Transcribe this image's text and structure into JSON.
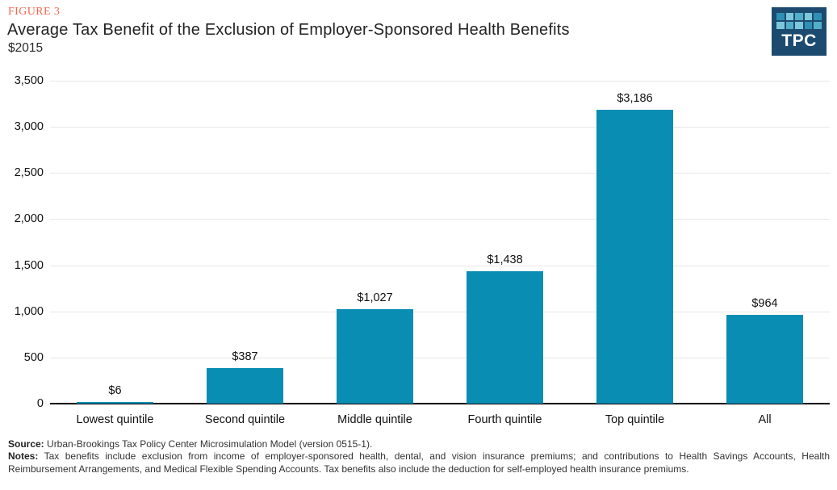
{
  "header": {
    "figure_label": "FIGURE 3",
    "title": "Average Tax Benefit of the Exclusion of Employer-Sponsored Health Benefits",
    "subtitle": "$2015"
  },
  "logo": {
    "text": "TPC",
    "background_color": "#1D4A6F",
    "square_colors": [
      "#2F8FB5",
      "#7CC7DB",
      "#52AFC9",
      "#7CC7DB",
      "#2F8FB5",
      "#7CC7DB",
      "#52AFC9",
      "#7CC7DB",
      "#2F8FB5",
      "#52AFC9"
    ]
  },
  "chart_data": {
    "type": "bar",
    "title": "Average Tax Benefit of the Exclusion of Employer-Sponsored Health Benefits",
    "subtitle": "$2015",
    "categories": [
      "Lowest quintile",
      "Second quintile",
      "Middle quintile",
      "Fourth quintile",
      "Top quintile",
      "All"
    ],
    "values": [
      6,
      387,
      1027,
      1438,
      3186,
      964
    ],
    "value_labels": [
      "$6",
      "$387",
      "$1,027",
      "$1,438",
      "$3,186",
      "$964"
    ],
    "yticks": [
      "0",
      "500",
      "1,000",
      "1,500",
      "2,000",
      "2,500",
      "3,000",
      "3,500"
    ],
    "ytick_interval": 500,
    "ylim": [
      0,
      3500
    ],
    "xlabel": "",
    "ylabel": "",
    "grid": true,
    "legend": "none",
    "bar_color": "#0A8DB2"
  },
  "footer": {
    "source_label": "Source:",
    "source_text": " Urban-Brookings Tax Policy Center Microsimulation Model (version 0515-1).",
    "notes_label": "Notes:",
    "notes_text": " Tax benefits include exclusion from income of employer-sponsored health, dental, and vision insurance premiums; and contributions to Health Savings Accounts, Health Reimbursement Arrangements, and Medical Flexible Spending Accounts. Tax benefits also include the deduction for self-employed health insurance premiums."
  }
}
